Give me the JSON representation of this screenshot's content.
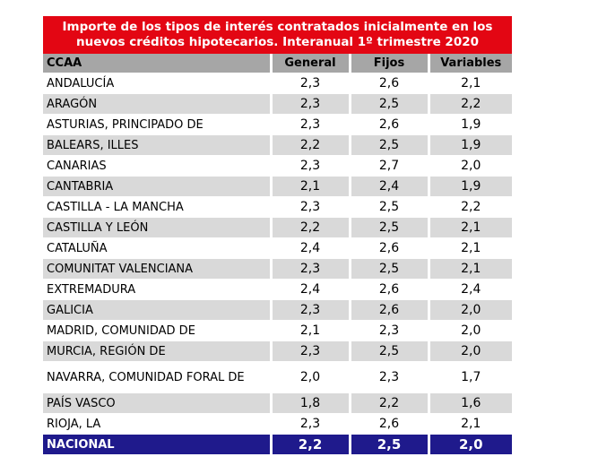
{
  "chart_data": {
    "type": "table",
    "title": "Importe de los tipos de interés contratados inicialmente en los nuevos créditos hipotecarios. Interanual 1º trimestre 2020",
    "columns": [
      "CCAA",
      "General",
      "Fijos",
      "Variables"
    ],
    "rows": [
      [
        "ANDALUCÍA",
        "2,3",
        "2,6",
        "2,1"
      ],
      [
        "ARAGÓN",
        "2,3",
        "2,5",
        "2,2"
      ],
      [
        "ASTURIAS, PRINCIPADO DE",
        "2,3",
        "2,6",
        "1,9"
      ],
      [
        "BALEARS, ILLES",
        "2,2",
        "2,5",
        "1,9"
      ],
      [
        "CANARIAS",
        "2,3",
        "2,7",
        "2,0"
      ],
      [
        "CANTABRIA",
        "2,1",
        "2,4",
        "1,9"
      ],
      [
        "CASTILLA - LA MANCHA",
        "2,3",
        "2,5",
        "2,2"
      ],
      [
        "CASTILLA Y LEÓN",
        "2,2",
        "2,5",
        "2,1"
      ],
      [
        "CATALUÑA",
        "2,4",
        "2,6",
        "2,1"
      ],
      [
        "COMUNITAT VALENCIANA",
        "2,3",
        "2,5",
        "2,1"
      ],
      [
        "EXTREMADURA",
        "2,4",
        "2,6",
        "2,4"
      ],
      [
        "GALICIA",
        "2,3",
        "2,6",
        "2,0"
      ],
      [
        "MADRID, COMUNIDAD DE",
        "2,1",
        "2,3",
        "2,0"
      ],
      [
        "MURCIA, REGIÓN DE",
        "2,3",
        "2,5",
        "2,0"
      ],
      [
        "NAVARRA, COMUNIDAD FORAL DE",
        "2,0",
        "2,3",
        "1,7"
      ],
      [
        "PAÍS VASCO",
        "1,8",
        "2,2",
        "1,6"
      ],
      [
        "RIOJA, LA",
        "2,3",
        "2,6",
        "2,1"
      ]
    ],
    "total": [
      "NACIONAL",
      "2,2",
      "2,5",
      "2,0"
    ],
    "colors": {
      "title_bg": "#e30613",
      "header_bg": "#a6a6a6",
      "alt_row_bg": "#d9d9d9",
      "total_bg": "#1f1a8c"
    }
  }
}
